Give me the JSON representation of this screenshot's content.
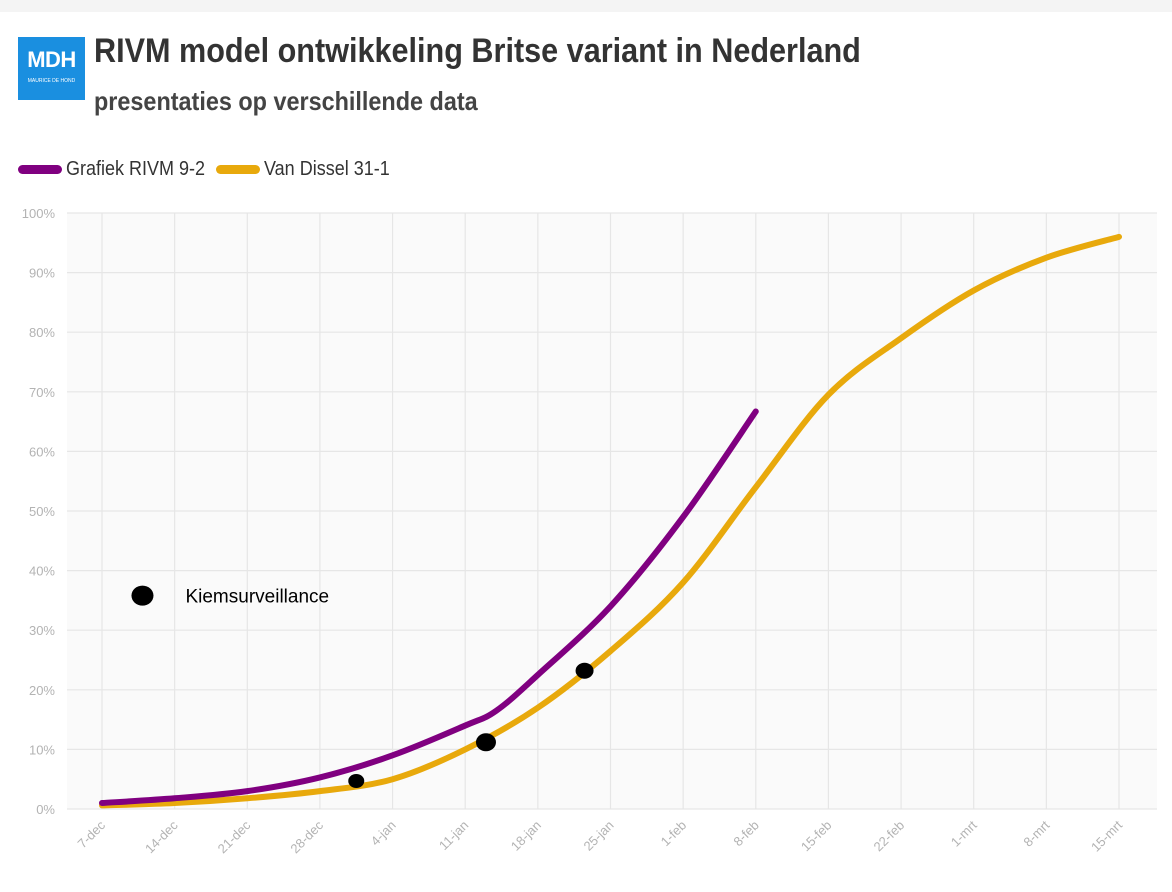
{
  "logo": {
    "main": "MDH",
    "sub": "MAURICE DE HOND"
  },
  "header": {
    "title": "RIVM model ontwikkeling Britse variant in Nederland",
    "subtitle": "presentaties op verschillende data"
  },
  "chart_data": {
    "type": "line",
    "title": "RIVM model ontwikkeling Britse variant in Nederland",
    "subtitle": "presentaties op verschillende data",
    "xlabel": "",
    "ylabel": "",
    "x_unit": "days since 7-dec",
    "categories": [
      "7-dec",
      "14-dec",
      "21-dec",
      "28-dec",
      "4-jan",
      "11-jan",
      "18-jan",
      "25-jan",
      "1-feb",
      "8-feb",
      "15-feb",
      "22-feb",
      "1-mrt",
      "8-mrt",
      "15-mrt"
    ],
    "xlim": [
      0,
      98
    ],
    "ylim": [
      0,
      100
    ],
    "yticks": [
      0,
      10,
      20,
      30,
      40,
      50,
      60,
      70,
      80,
      90,
      100
    ],
    "ytick_labels": [
      "0%",
      "10%",
      "20%",
      "30%",
      "40%",
      "50%",
      "60%",
      "70%",
      "80%",
      "90%",
      "100%"
    ],
    "grid": true,
    "legend_position": "top-left",
    "series": [
      {
        "name": "Grafiek RIVM 9-2",
        "color": "#800080",
        "x": [
          0,
          7,
          14,
          21,
          28,
          35,
          38,
          42,
          49,
          56,
          63
        ],
        "values": [
          1,
          1.8,
          3,
          5.3,
          9,
          14,
          16.5,
          22.5,
          34,
          49,
          66.7
        ]
      },
      {
        "name": "Van Dissel 31-1",
        "color": "#e8a90c",
        "x": [
          0,
          7,
          14,
          21,
          28,
          35,
          42,
          49,
          56,
          63,
          70,
          77,
          84,
          91,
          98
        ],
        "values": [
          0.6,
          1,
          1.8,
          3,
          5,
          10,
          17,
          26.5,
          38,
          54,
          69.5,
          79,
          87,
          92.5,
          96
        ]
      }
    ],
    "points": {
      "name": "Kiemsurveillance",
      "color": "#000000",
      "x": [
        24.5,
        37,
        46.5
      ],
      "values": [
        4.7,
        11.2,
        23.2
      ]
    },
    "annotation": {
      "text": "Kiemsurveillance",
      "x": 3.9,
      "value": 35.8
    }
  }
}
